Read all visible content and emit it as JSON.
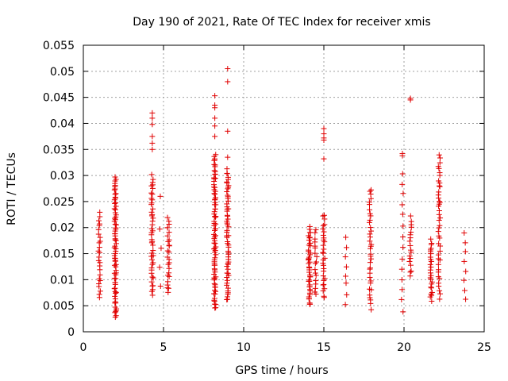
{
  "chart_data": {
    "type": "scatter",
    "title": "Day 190 of 2021, Rate Of TEC Index for receiver xmis",
    "xlabel": "GPS time / hours",
    "ylabel": "ROTI / TECUs",
    "xlim": [
      0,
      25
    ],
    "ylim": [
      0,
      0.055
    ],
    "x_ticks": [
      0,
      5,
      10,
      15,
      20,
      25
    ],
    "y_ticks": [
      0,
      0.005,
      0.01,
      0.015,
      0.02,
      0.025,
      0.03,
      0.035,
      0.04,
      0.045,
      0.05,
      0.055
    ],
    "x_tick_labels": [
      "0",
      "5",
      "10",
      "15",
      "20",
      "25"
    ],
    "y_tick_labels": [
      "0",
      "0.005",
      "0.01",
      "0.015",
      "0.02",
      "0.025",
      "0.03",
      "0.035",
      "0.04",
      "0.045",
      "0.05",
      "0.055"
    ],
    "grid": true,
    "marker": "plus",
    "marker_color": "#e00000",
    "clusters": [
      {
        "x": 1.0,
        "y_min": 0.0065,
        "y_max": 0.0228,
        "n": 26
      },
      {
        "x": 2.0,
        "y_min": 0.0028,
        "y_max": 0.0295,
        "n": 75
      },
      {
        "x": 4.3,
        "y_min": 0.007,
        "y_max": 0.03,
        "n": 45
      },
      {
        "x": 4.8,
        "y_min": 0.009,
        "y_max": 0.0195,
        "n": 4
      },
      {
        "x": 5.3,
        "y_min": 0.0075,
        "y_max": 0.022,
        "n": 26
      },
      {
        "x": 8.2,
        "y_min": 0.0045,
        "y_max": 0.034,
        "n": 85
      },
      {
        "x": 9.0,
        "y_min": 0.006,
        "y_max": 0.031,
        "n": 60
      },
      {
        "x": 14.1,
        "y_min": 0.005,
        "y_max": 0.02,
        "n": 45
      },
      {
        "x": 14.5,
        "y_min": 0.007,
        "y_max": 0.0195,
        "n": 18
      },
      {
        "x": 15.0,
        "y_min": 0.0065,
        "y_max": 0.0225,
        "n": 30
      },
      {
        "x": 16.4,
        "y_min": 0.0055,
        "y_max": 0.018,
        "n": 8
      },
      {
        "x": 17.9,
        "y_min": 0.0045,
        "y_max": 0.0275,
        "n": 36
      },
      {
        "x": 19.9,
        "y_min": 0.004,
        "y_max": 0.0305,
        "n": 14
      },
      {
        "x": 20.4,
        "y_min": 0.0105,
        "y_max": 0.022,
        "n": 18
      },
      {
        "x": 21.7,
        "y_min": 0.006,
        "y_max": 0.0175,
        "n": 26
      },
      {
        "x": 22.2,
        "y_min": 0.0065,
        "y_max": 0.034,
        "n": 40
      },
      {
        "x": 23.8,
        "y_min": 0.006,
        "y_max": 0.019,
        "n": 8
      }
    ],
    "points": [
      [
        4.3,
        0.042
      ],
      [
        4.3,
        0.041
      ],
      [
        4.3,
        0.0398
      ],
      [
        4.3,
        0.0375
      ],
      [
        4.3,
        0.0362
      ],
      [
        4.3,
        0.035
      ],
      [
        4.8,
        0.026
      ],
      [
        8.2,
        0.0453
      ],
      [
        8.2,
        0.0435
      ],
      [
        8.2,
        0.043
      ],
      [
        8.2,
        0.041
      ],
      [
        8.2,
        0.0395
      ],
      [
        8.2,
        0.0375
      ],
      [
        9.0,
        0.0505
      ],
      [
        9.0,
        0.048
      ],
      [
        9.0,
        0.0385
      ],
      [
        9.0,
        0.0335
      ],
      [
        15.0,
        0.039
      ],
      [
        15.0,
        0.038
      ],
      [
        15.0,
        0.0372
      ],
      [
        15.0,
        0.0368
      ],
      [
        15.0,
        0.0332
      ],
      [
        19.9,
        0.0342
      ],
      [
        19.9,
        0.0338
      ],
      [
        20.4,
        0.0448
      ],
      [
        20.4,
        0.0445
      ],
      [
        22.2,
        0.028
      ],
      [
        22.2,
        0.025
      ],
      [
        22.2,
        0.0245
      ]
    ]
  }
}
